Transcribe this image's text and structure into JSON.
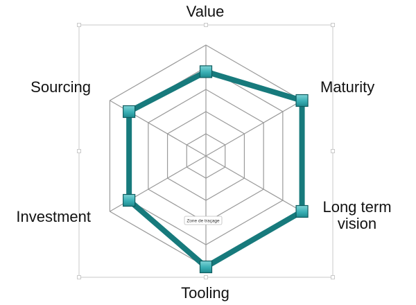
{
  "chart_data": {
    "type": "radar",
    "axes": [
      "Value",
      "Maturity",
      "Long term vision",
      "Tooling",
      "Investment",
      "Sourcing"
    ],
    "axis_label_lines": [
      [
        "Value"
      ],
      [
        "Maturity"
      ],
      [
        "Long term",
        "vision"
      ],
      [
        "Tooling"
      ],
      [
        "Investment"
      ],
      [
        "Sourcing"
      ]
    ],
    "levels": 5,
    "range": [
      0,
      5
    ],
    "grid": true,
    "series": [
      {
        "values": [
          3.8,
          5.0,
          5.0,
          5.0,
          4.0,
          4.0
        ],
        "color": "#177A7C"
      }
    ]
  },
  "tooltip": {
    "text": "Zone de traçage"
  },
  "colors": {
    "grid": "#9a9a9a",
    "series": "#177A7C",
    "marker_fill": "#39AFB4",
    "marker_stroke": "#0E5B5E",
    "frame": "#c8c8c8"
  }
}
